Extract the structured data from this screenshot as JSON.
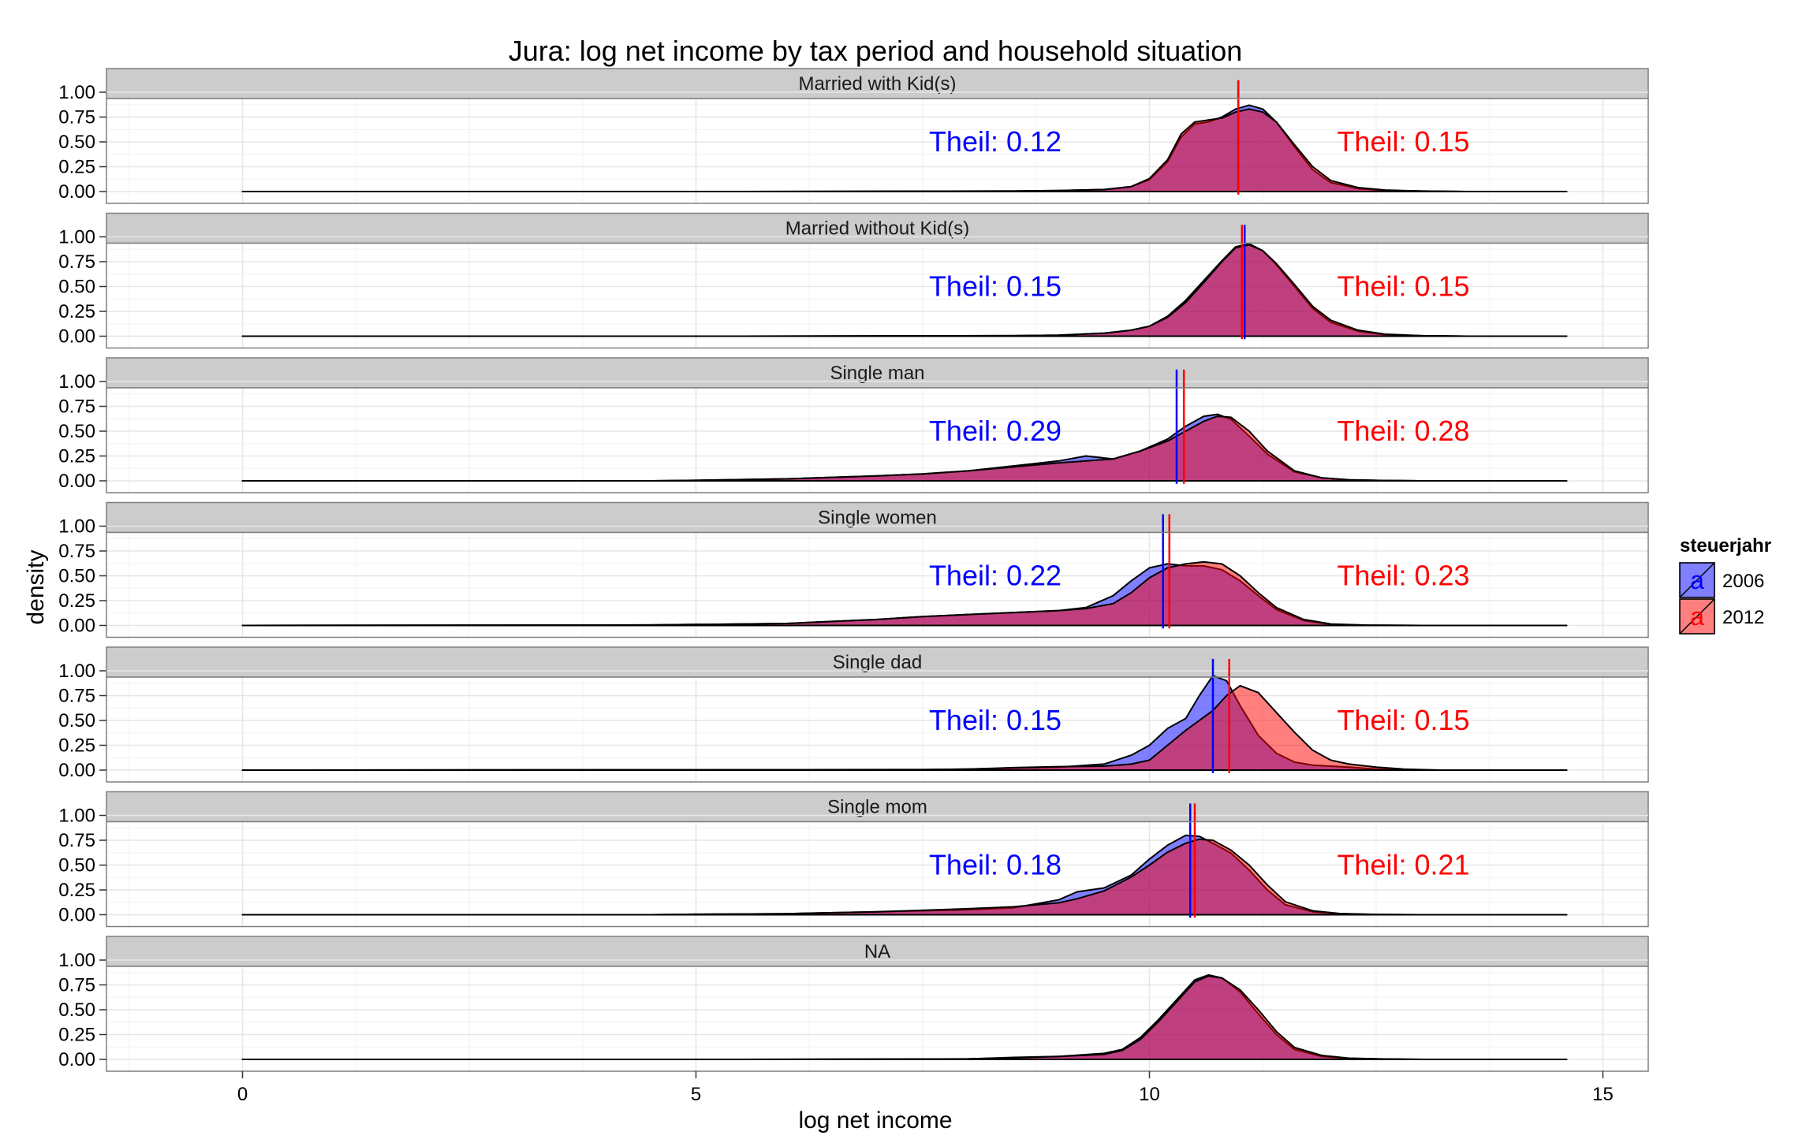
{
  "chart_data": {
    "type": "area",
    "title": "Jura: log net income by tax period and household situation",
    "xlabel": "log net income",
    "ylabel": "density",
    "xlim": [
      -1.5,
      15.5
    ],
    "ylim": [
      0,
      1.15
    ],
    "x_ticks": [
      0,
      5,
      10,
      15
    ],
    "y_ticks": [
      "0.00",
      "0.25",
      "0.50",
      "0.75",
      "1.00"
    ],
    "y_tick_values": [
      0,
      0.25,
      0.5,
      0.75,
      1.0
    ],
    "grid": true,
    "legend": {
      "title": "steuerjahr",
      "placement": "right",
      "glyph": "a",
      "items": [
        {
          "label": "2006",
          "color": "#0000ff"
        },
        {
          "label": "2012",
          "color": "#ff0000"
        }
      ]
    },
    "colors": {
      "2006": "#0000ff",
      "2012": "#ff0000",
      "panel_strip": "#cccccc",
      "grid": "#ececec"
    },
    "annotation_prefix": "Theil: ",
    "annotation_x": {
      "left": 8.3,
      "right": 12.8
    },
    "annotation_y": 0.5,
    "panels": [
      {
        "label": "Married with Kid(s)",
        "theil_2006": "0.12",
        "theil_2012": "0.15",
        "mean_2006": 10.98,
        "mean_2012": 10.98,
        "x": [
          0,
          5.5,
          8.5,
          9.0,
          9.5,
          9.8,
          10.0,
          10.2,
          10.35,
          10.5,
          10.65,
          10.8,
          10.95,
          11.1,
          11.25,
          11.4,
          11.6,
          11.8,
          12.0,
          12.3,
          12.6,
          13.0,
          13.5,
          14.0,
          14.6
        ],
        "series": [
          {
            "name": "2006",
            "values": [
              0,
              0,
              0.005,
              0.01,
              0.02,
              0.05,
              0.12,
              0.3,
              0.55,
              0.68,
              0.7,
              0.75,
              0.83,
              0.87,
              0.83,
              0.7,
              0.45,
              0.22,
              0.09,
              0.03,
              0.01,
              0.005,
              0,
              0,
              0
            ]
          },
          {
            "name": "2012",
            "values": [
              0,
              0,
              0.005,
              0.01,
              0.02,
              0.05,
              0.13,
              0.32,
              0.58,
              0.7,
              0.72,
              0.74,
              0.8,
              0.83,
              0.8,
              0.7,
              0.47,
              0.25,
              0.11,
              0.04,
              0.015,
              0.005,
              0,
              0,
              0
            ]
          }
        ]
      },
      {
        "label": "Married without Kid(s)",
        "theil_2006": "0.15",
        "theil_2012": "0.15",
        "mean_2006": 11.05,
        "mean_2012": 11.02,
        "x": [
          0,
          5.5,
          8.5,
          9.0,
          9.5,
          9.8,
          10.0,
          10.2,
          10.4,
          10.6,
          10.8,
          10.95,
          11.1,
          11.25,
          11.4,
          11.6,
          11.8,
          12.0,
          12.3,
          12.6,
          13.0,
          13.5,
          14.0,
          14.6
        ],
        "series": [
          {
            "name": "2006",
            "values": [
              0,
              0,
              0.005,
              0.01,
              0.03,
              0.06,
              0.1,
              0.2,
              0.36,
              0.56,
              0.76,
              0.9,
              0.93,
              0.86,
              0.72,
              0.5,
              0.28,
              0.14,
              0.05,
              0.015,
              0.005,
              0,
              0,
              0
            ]
          },
          {
            "name": "2012",
            "values": [
              0,
              0,
              0.005,
              0.01,
              0.03,
              0.06,
              0.1,
              0.19,
              0.34,
              0.54,
              0.75,
              0.89,
              0.92,
              0.86,
              0.73,
              0.52,
              0.3,
              0.16,
              0.06,
              0.02,
              0.005,
              0,
              0,
              0
            ]
          }
        ]
      },
      {
        "label": "Single man",
        "theil_2006": "0.29",
        "theil_2012": "0.28",
        "mean_2006": 10.3,
        "mean_2012": 10.38,
        "x": [
          0,
          4.5,
          5.0,
          6.0,
          7.0,
          7.5,
          8.0,
          8.5,
          9.0,
          9.3,
          9.6,
          9.9,
          10.2,
          10.4,
          10.6,
          10.75,
          10.9,
          11.1,
          11.3,
          11.6,
          11.9,
          12.2,
          12.6,
          13.0,
          14.6
        ],
        "series": [
          {
            "name": "2006",
            "values": [
              0,
              0,
              0.005,
              0.02,
              0.05,
              0.07,
              0.1,
              0.15,
              0.2,
              0.25,
              0.22,
              0.3,
              0.42,
              0.55,
              0.65,
              0.67,
              0.62,
              0.45,
              0.27,
              0.09,
              0.03,
              0.01,
              0.003,
              0,
              0
            ]
          },
          {
            "name": "2012",
            "values": [
              0,
              0,
              0.005,
              0.02,
              0.05,
              0.07,
              0.1,
              0.14,
              0.18,
              0.2,
              0.22,
              0.3,
              0.4,
              0.5,
              0.6,
              0.65,
              0.64,
              0.5,
              0.3,
              0.1,
              0.03,
              0.01,
              0.003,
              0,
              0
            ]
          }
        ]
      },
      {
        "label": "Single women",
        "theil_2006": "0.22",
        "theil_2012": "0.23",
        "mean_2006": 10.15,
        "mean_2012": 10.22,
        "x": [
          0,
          4.5,
          6.0,
          7.0,
          7.5,
          8.0,
          8.5,
          9.0,
          9.3,
          9.6,
          9.8,
          10.0,
          10.2,
          10.4,
          10.6,
          10.8,
          11.0,
          11.2,
          11.4,
          11.7,
          12.0,
          12.4,
          13.0,
          14.6
        ],
        "series": [
          {
            "name": "2006",
            "values": [
              0,
              0.005,
              0.02,
              0.06,
              0.09,
              0.11,
              0.13,
              0.15,
              0.18,
              0.3,
              0.45,
              0.58,
              0.62,
              0.6,
              0.6,
              0.56,
              0.45,
              0.3,
              0.16,
              0.05,
              0.01,
              0.003,
              0,
              0
            ]
          },
          {
            "name": "2012",
            "values": [
              0,
              0.005,
              0.02,
              0.06,
              0.09,
              0.11,
              0.13,
              0.15,
              0.17,
              0.22,
              0.33,
              0.48,
              0.58,
              0.62,
              0.64,
              0.62,
              0.5,
              0.33,
              0.18,
              0.06,
              0.015,
              0.003,
              0,
              0
            ]
          }
        ]
      },
      {
        "label": "Single dad",
        "theil_2006": "0.15",
        "theil_2012": "0.15",
        "mean_2006": 10.7,
        "mean_2012": 10.88,
        "x": [
          0,
          7.5,
          8.0,
          8.5,
          9.0,
          9.5,
          9.8,
          10.0,
          10.2,
          10.4,
          10.55,
          10.7,
          10.85,
          11.0,
          11.2,
          11.4,
          11.6,
          11.8,
          12.0,
          12.2,
          12.5,
          12.8,
          13.2,
          14.6
        ],
        "series": [
          {
            "name": "2006",
            "values": [
              0,
              0.005,
              0.01,
              0.02,
              0.03,
              0.06,
              0.15,
              0.25,
              0.42,
              0.52,
              0.75,
              0.95,
              0.9,
              0.65,
              0.35,
              0.17,
              0.08,
              0.05,
              0.04,
              0.03,
              0.01,
              0.003,
              0,
              0
            ]
          },
          {
            "name": "2012",
            "values": [
              0,
              0.005,
              0.01,
              0.025,
              0.035,
              0.04,
              0.06,
              0.1,
              0.25,
              0.4,
              0.5,
              0.6,
              0.75,
              0.85,
              0.78,
              0.58,
              0.38,
              0.2,
              0.1,
              0.06,
              0.03,
              0.01,
              0,
              0
            ]
          }
        ]
      },
      {
        "label": "Single mom",
        "theil_2006": "0.18",
        "theil_2012": "0.21",
        "mean_2006": 10.45,
        "mean_2012": 10.5,
        "x": [
          0,
          4.5,
          5.0,
          6.0,
          7.0,
          8.0,
          8.5,
          9.0,
          9.2,
          9.5,
          9.8,
          10.0,
          10.2,
          10.4,
          10.55,
          10.7,
          10.9,
          11.1,
          11.3,
          11.5,
          11.8,
          12.1,
          12.5,
          13.0,
          14.6
        ],
        "series": [
          {
            "name": "2006",
            "values": [
              0,
              0,
              0.005,
              0.01,
              0.03,
              0.05,
              0.07,
              0.15,
              0.23,
              0.27,
              0.4,
              0.56,
              0.7,
              0.8,
              0.79,
              0.72,
              0.62,
              0.45,
              0.25,
              0.1,
              0.03,
              0.01,
              0.003,
              0,
              0
            ]
          },
          {
            "name": "2012",
            "values": [
              0,
              0,
              0.005,
              0.01,
              0.03,
              0.06,
              0.08,
              0.12,
              0.16,
              0.24,
              0.38,
              0.5,
              0.63,
              0.72,
              0.76,
              0.75,
              0.65,
              0.5,
              0.3,
              0.13,
              0.04,
              0.012,
              0.003,
              0,
              0
            ]
          }
        ]
      },
      {
        "label": "NA",
        "theil_2006": "",
        "theil_2012": "",
        "x": [
          0,
          5.5,
          8.0,
          8.5,
          9.0,
          9.5,
          9.7,
          9.9,
          10.1,
          10.3,
          10.5,
          10.65,
          10.8,
          11.0,
          11.2,
          11.4,
          11.6,
          11.9,
          12.2,
          12.6,
          13.0,
          14.6
        ],
        "series": [
          {
            "name": "2006",
            "values": [
              0,
              0,
              0.005,
              0.02,
              0.03,
              0.06,
              0.1,
              0.22,
              0.4,
              0.6,
              0.8,
              0.85,
              0.82,
              0.68,
              0.46,
              0.25,
              0.1,
              0.03,
              0.01,
              0.003,
              0,
              0
            ]
          },
          {
            "name": "2012",
            "values": [
              0,
              0,
              0.005,
              0.015,
              0.03,
              0.05,
              0.09,
              0.2,
              0.38,
              0.58,
              0.78,
              0.84,
              0.82,
              0.7,
              0.5,
              0.28,
              0.12,
              0.04,
              0.012,
              0.004,
              0,
              0
            ]
          }
        ]
      }
    ]
  }
}
